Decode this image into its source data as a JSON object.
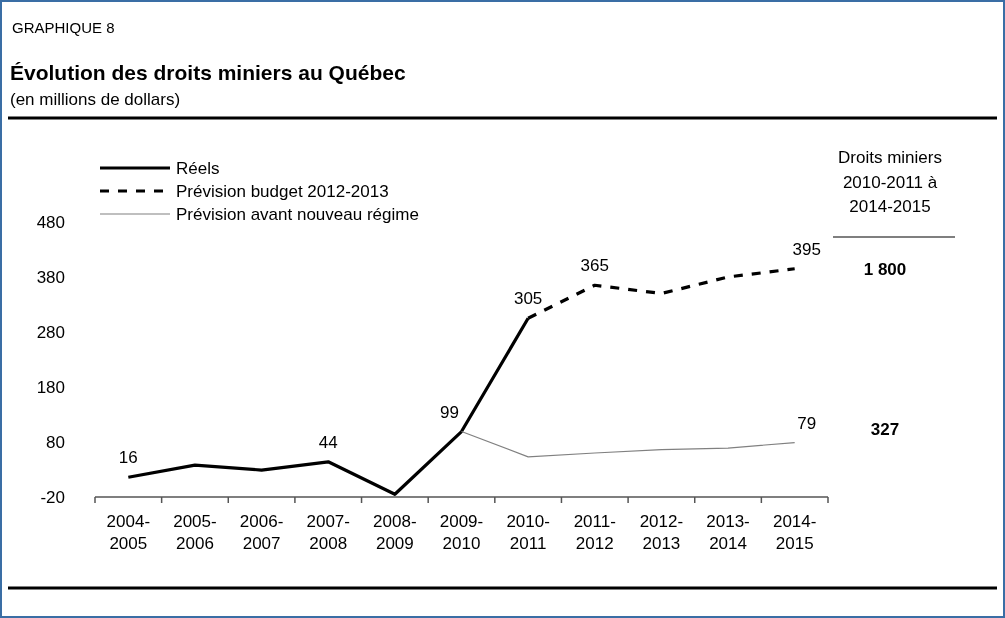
{
  "chart_data": {
    "type": "line",
    "title": "Évolution des droits miniers au Québec",
    "subtitle": "(en millions de dollars)",
    "annotations": [
      "GRAPHIQUE 8",
      "Droits miniers\n2010-2011 à\n2014-2015",
      "1 800",
      "327"
    ],
    "categories": [
      "2004-\n2005",
      "2005-\n2006",
      "2006-\n2007",
      "2007-\n2008",
      "2008-\n2009",
      "2009-\n2010",
      "2010-\n2011",
      "2011-\n2012",
      "2012-\n2013",
      "2013-\n2014",
      "2014-\n2015"
    ],
    "series": [
      {
        "name": "Réels",
        "color": "#000000",
        "line_style": "solid",
        "values": [
          16,
          38,
          29,
          44,
          -15,
          99,
          305,
          null,
          null,
          null,
          null
        ],
        "value_labels": [
          "16",
          null,
          null,
          "44",
          null,
          "99",
          "305",
          null,
          null,
          null,
          null
        ]
      },
      {
        "name": "Prévision budget 2012-2013",
        "color": "#000000",
        "line_style": "dashed",
        "values": [
          null,
          null,
          null,
          null,
          null,
          null,
          305,
          365,
          350,
          380,
          395
        ],
        "value_labels": [
          null,
          null,
          null,
          null,
          null,
          null,
          null,
          "365",
          null,
          null,
          "395"
        ]
      },
      {
        "name": "Prévision avant nouveau régime",
        "color": "#808080",
        "line_style": "solid",
        "values": [
          null,
          null,
          null,
          null,
          null,
          99,
          53,
          60,
          66,
          69,
          79
        ],
        "value_labels": [
          null,
          null,
          null,
          null,
          null,
          null,
          null,
          null,
          null,
          null,
          "79"
        ]
      }
    ],
    "ylim": [
      -20,
      480
    ],
    "yticks": [
      -20,
      80,
      180,
      280,
      380,
      480
    ],
    "grid": false,
    "legend": "top left"
  }
}
